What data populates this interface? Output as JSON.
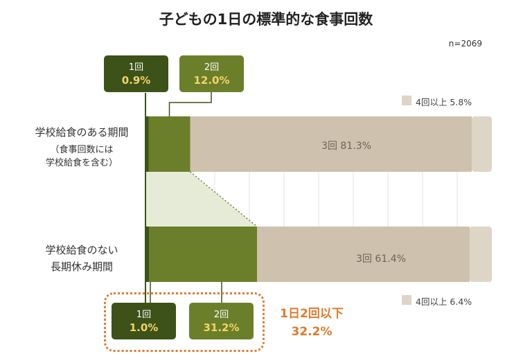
{
  "title": "子どもの1日の標準的な食事回数",
  "n_label": "n=2069",
  "colors": {
    "one": "#3d5218",
    "two": "#6b7f2a",
    "three": "#cec1ad",
    "four": "#ddd5c6",
    "highlight": "#e07a2c",
    "value_text": "#f3d36a"
  },
  "rows": [
    {
      "label_main": "学校給食のある期間",
      "label_sub1": "（食事回数には",
      "label_sub2": "学校給食を含む）",
      "callouts": [
        {
          "key": "1回",
          "value": "0.9%"
        },
        {
          "key": "2回",
          "value": "12.0%"
        }
      ],
      "bar_label": "3回 81.3%",
      "legend": "4回以上 5.8%"
    },
    {
      "label_main1": "学校給食のない",
      "label_main2": "長期休み期間",
      "callouts": [
        {
          "key": "1回",
          "value": "1.0%"
        },
        {
          "key": "2回",
          "value": "31.2%"
        }
      ],
      "bar_label": "3回 61.4%",
      "legend": "4回以上 6.4%"
    }
  ],
  "summary": {
    "line1": "1日2回以下",
    "line2": "32.2%"
  },
  "chart_data": {
    "type": "bar",
    "stacked": true,
    "orientation": "horizontal",
    "title": "子どもの1日の標準的な食事回数",
    "note": "n=2069",
    "categories": [
      "学校給食のある期間（食事回数には学校給食を含む）",
      "学校給食のない長期休み期間"
    ],
    "series": [
      {
        "name": "1回",
        "values": [
          0.9,
          1.0
        ]
      },
      {
        "name": "2回",
        "values": [
          12.0,
          31.2
        ]
      },
      {
        "name": "3回",
        "values": [
          81.3,
          61.4
        ]
      },
      {
        "name": "4回以上",
        "values": [
          5.8,
          6.4
        ]
      }
    ],
    "xlim": [
      0,
      100
    ],
    "grid": true,
    "annotations": [
      "1日2回以下 32.2%"
    ]
  }
}
